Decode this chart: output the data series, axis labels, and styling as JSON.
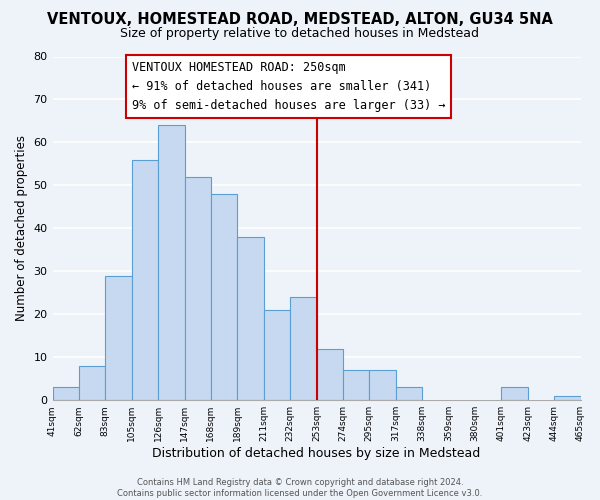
{
  "title": "VENTOUX, HOMESTEAD ROAD, MEDSTEAD, ALTON, GU34 5NA",
  "subtitle": "Size of property relative to detached houses in Medstead",
  "xlabel": "Distribution of detached houses by size in Medstead",
  "ylabel": "Number of detached properties",
  "bar_values": [
    3,
    8,
    29,
    56,
    64,
    52,
    48,
    38,
    21,
    24,
    12,
    7,
    7,
    3,
    0,
    0,
    0,
    3,
    0,
    1
  ],
  "bar_labels": [
    "41sqm",
    "62sqm",
    "83sqm",
    "105sqm",
    "126sqm",
    "147sqm",
    "168sqm",
    "189sqm",
    "211sqm",
    "232sqm",
    "253sqm",
    "274sqm",
    "295sqm",
    "317sqm",
    "338sqm",
    "359sqm",
    "380sqm",
    "401sqm",
    "423sqm",
    "444sqm",
    "465sqm"
  ],
  "bar_color": "#c6d9f0",
  "bar_edge_color": "#5a9fd4",
  "vline_color": "#cc0000",
  "annotation_title": "VENTOUX HOMESTEAD ROAD: 250sqm",
  "annotation_line1": "← 91% of detached houses are smaller (341)",
  "annotation_line2": "9% of semi-detached houses are larger (33) →",
  "annotation_box_color": "#cc0000",
  "ylim": [
    0,
    80
  ],
  "yticks": [
    0,
    10,
    20,
    30,
    40,
    50,
    60,
    70,
    80
  ],
  "footer": "Contains HM Land Registry data © Crown copyright and database right 2024.\nContains public sector information licensed under the Open Government Licence v3.0.",
  "background_color": "#eef2f9",
  "grid_color": "#ffffff",
  "title_fontsize": 10.5,
  "subtitle_fontsize": 9,
  "annotation_fontsize": 8.5
}
